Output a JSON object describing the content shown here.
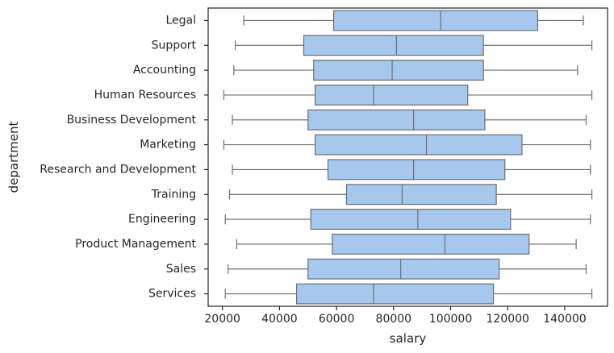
{
  "chart_data": {
    "type": "box",
    "orientation": "horizontal",
    "xlabel": "salary",
    "ylabel": "department",
    "xlim": [
      15000,
      155000
    ],
    "xticks": [
      20000,
      40000,
      60000,
      80000,
      100000,
      120000,
      140000
    ],
    "colors": {
      "box_fill": "#a6c8ee",
      "line": "#6e6e6e",
      "axis": "#262626",
      "background": "#ffffff"
    },
    "grid": false,
    "categories": [
      "Legal",
      "Support",
      "Accounting",
      "Human Resources",
      "Business Development",
      "Marketing",
      "Research and Development",
      "Training",
      "Engineering",
      "Product Management",
      "Sales",
      "Services"
    ],
    "boxes": [
      {
        "category": "Legal",
        "whisker_low": 27500,
        "q1": 59000,
        "median": 96500,
        "q3": 130500,
        "whisker_high": 146500
      },
      {
        "category": "Support",
        "whisker_low": 24500,
        "q1": 48500,
        "median": 81000,
        "q3": 111500,
        "whisker_high": 149500
      },
      {
        "category": "Accounting",
        "whisker_low": 24000,
        "q1": 52000,
        "median": 79500,
        "q3": 111500,
        "whisker_high": 144500
      },
      {
        "category": "Human Resources",
        "whisker_low": 20500,
        "q1": 52500,
        "median": 73000,
        "q3": 106000,
        "whisker_high": 149500
      },
      {
        "category": "Business Development",
        "whisker_low": 23500,
        "q1": 50000,
        "median": 87000,
        "q3": 112000,
        "whisker_high": 147500
      },
      {
        "category": "Marketing",
        "whisker_low": 20500,
        "q1": 52500,
        "median": 91500,
        "q3": 125000,
        "whisker_high": 149000
      },
      {
        "category": "Research and Development",
        "whisker_low": 23500,
        "q1": 57000,
        "median": 87000,
        "q3": 119000,
        "whisker_high": 149000
      },
      {
        "category": "Training",
        "whisker_low": 22500,
        "q1": 63500,
        "median": 83000,
        "q3": 116000,
        "whisker_high": 149500
      },
      {
        "category": "Engineering",
        "whisker_low": 21000,
        "q1": 51000,
        "median": 88500,
        "q3": 121000,
        "whisker_high": 149000
      },
      {
        "category": "Product Management",
        "whisker_low": 25000,
        "q1": 58500,
        "median": 98000,
        "q3": 127500,
        "whisker_high": 144000
      },
      {
        "category": "Sales",
        "whisker_low": 22000,
        "q1": 50000,
        "median": 82500,
        "q3": 117000,
        "whisker_high": 147500
      },
      {
        "category": "Services",
        "whisker_low": 21000,
        "q1": 46000,
        "median": 73000,
        "q3": 115000,
        "whisker_high": 149500
      }
    ]
  }
}
